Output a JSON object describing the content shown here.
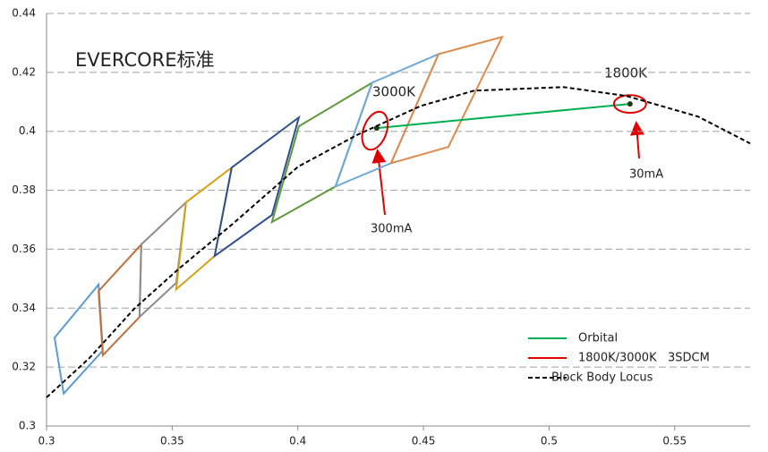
{
  "chart_data": {
    "type": "line",
    "title": "EVERCORE标准",
    "xlim": [
      0.3,
      0.58
    ],
    "ylim": [
      0.3,
      0.44
    ],
    "xticks": [
      0.3,
      0.35,
      0.4,
      0.45,
      0.5,
      0.55
    ],
    "yticks": [
      0.3,
      0.32,
      0.34,
      0.36,
      0.38,
      0.4,
      0.42,
      0.44
    ],
    "grid": true,
    "legend": "lower right",
    "bins": [
      {
        "color": "#5b9bd5",
        "x": [
          0.3032,
          0.3207,
          0.3224,
          0.3068
        ],
        "y": [
          0.33,
          0.348,
          0.3256,
          0.311
        ]
      },
      {
        "color": "#c0703c",
        "x": [
          0.3207,
          0.3377,
          0.337,
          0.3224
        ],
        "y": [
          0.3458,
          0.3616,
          0.337,
          0.324
        ]
      },
      {
        "color": "#8c8c8c",
        "x": [
          0.3377,
          0.3555,
          0.3516,
          0.337
        ],
        "y": [
          0.3616,
          0.3759,
          0.3486,
          0.337
        ]
      },
      {
        "color": "#d4a017",
        "x": [
          0.3555,
          0.3737,
          0.3669,
          0.3516
        ],
        "y": [
          0.3759,
          0.3877,
          0.3577,
          0.3464
        ]
      },
      {
        "color": "#2f4f8f",
        "x": [
          0.3737,
          0.4004,
          0.3897,
          0.3669
        ],
        "y": [
          0.3877,
          0.4047,
          0.3716,
          0.3577
        ]
      },
      {
        "color": "#5e9a3a",
        "x": [
          0.4004,
          0.4296,
          0.415,
          0.3897
        ],
        "y": [
          0.4017,
          0.4165,
          0.3813,
          0.3692
        ]
      },
      {
        "color": "#6fa8dc",
        "x": [
          0.4296,
          0.456,
          0.4371,
          0.415
        ],
        "y": [
          0.4165,
          0.4262,
          0.3892,
          0.3813
        ]
      },
      {
        "color": "#e08a4a",
        "x": [
          0.456,
          0.4813,
          0.4599,
          0.4371
        ],
        "y": [
          0.4262,
          0.432,
          0.3947,
          0.3892
        ]
      }
    ],
    "series": [
      {
        "name": "Orbital",
        "color": "#00b050",
        "x": [
          0.4314,
          0.5322
        ],
        "y": [
          0.4011,
          0.4093
        ]
      },
      {
        "name": "1800K/3000K   3SDCM",
        "color": "#e00000",
        "ellipses": [
          {
            "x": 0.4307,
            "y": 0.4002,
            "rx": 0.0046,
            "ry": 0.0067,
            "angle": 20
          },
          {
            "x": 0.5322,
            "y": 0.4093,
            "rx": 0.0064,
            "ry": 0.003,
            "angle": 0
          }
        ]
      },
      {
        "name": "Block Body Locus",
        "color": "#000000",
        "dashed": true,
        "x": [
          0.3,
          0.3171,
          0.3349,
          0.3527,
          0.3741,
          0.4001,
          0.4239,
          0.4489,
          0.4702,
          0.5058,
          0.5308,
          0.5593,
          0.58
        ],
        "y": [
          0.3097,
          0.3231,
          0.3398,
          0.3534,
          0.3686,
          0.388,
          0.3989,
          0.4086,
          0.4138,
          0.415,
          0.412,
          0.405,
          0.3959
        ]
      }
    ],
    "annotations": [
      "3000K",
      "1800K",
      "300mA",
      "30mA"
    ]
  }
}
